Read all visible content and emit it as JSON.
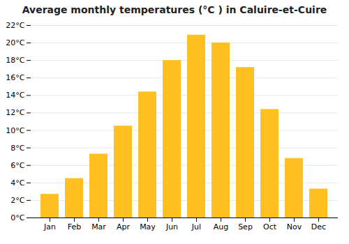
{
  "chart_data": {
    "type": "bar",
    "title": "Average monthly temperatures (°C ) in Caluire-et-Cuire",
    "categories": [
      "Jan",
      "Feb",
      "Mar",
      "Apr",
      "May",
      "Jun",
      "Jul",
      "Aug",
      "Sep",
      "Oct",
      "Nov",
      "Dec"
    ],
    "values": [
      2.7,
      4.5,
      7.3,
      10.5,
      14.4,
      18.0,
      20.9,
      20.0,
      17.2,
      12.4,
      6.8,
      3.3
    ],
    "color": "#FFC020",
    "ylim": [
      0,
      22
    ],
    "yticks": [
      {
        "value": 0,
        "label": "0°C"
      },
      {
        "value": 2,
        "label": "2°C"
      },
      {
        "value": 4,
        "label": "4°C"
      },
      {
        "value": 6,
        "label": "6°C"
      },
      {
        "value": 8,
        "label": "8°C"
      },
      {
        "value": 10,
        "label": "10°C"
      },
      {
        "value": 12,
        "label": "12°C"
      },
      {
        "value": 14,
        "label": "14°C"
      },
      {
        "value": 16,
        "label": "16°C"
      },
      {
        "value": 18,
        "label": "18°C"
      },
      {
        "value": 20,
        "label": "20°C"
      },
      {
        "value": 22,
        "label": "22°C"
      }
    ],
    "grid": true
  }
}
